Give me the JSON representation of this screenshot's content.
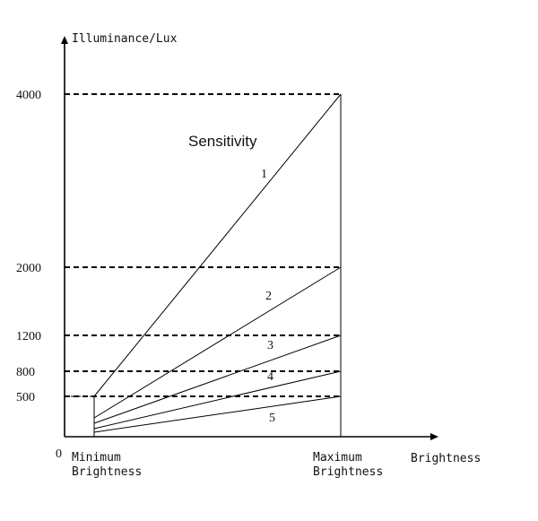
{
  "chart_data": {
    "type": "line",
    "title": "Sensitivity",
    "ylabel": "Illuminance/Lux",
    "xlabel": "Brightness",
    "origin_label": "0",
    "x_tick_labels": [
      {
        "line1": "Minimum",
        "line2": "Brightness"
      },
      {
        "line1": "Maximum",
        "line2": "Brightness"
      }
    ],
    "y_ticks": [
      500,
      800,
      1200,
      2000,
      4000
    ],
    "y_tick_labels": [
      "500",
      "800",
      "1200",
      "2000",
      "4000"
    ],
    "x": [
      0,
      1
    ],
    "ylim": [
      0,
      4000
    ],
    "series": [
      {
        "name": "1",
        "values": [
          500,
          4000
        ]
      },
      {
        "name": "2",
        "values": [
          320,
          2000
        ]
      },
      {
        "name": "3",
        "values": [
          240,
          1200
        ]
      },
      {
        "name": "4",
        "values": [
          150,
          800
        ]
      },
      {
        "name": "5",
        "values": [
          60,
          500
        ]
      }
    ]
  }
}
